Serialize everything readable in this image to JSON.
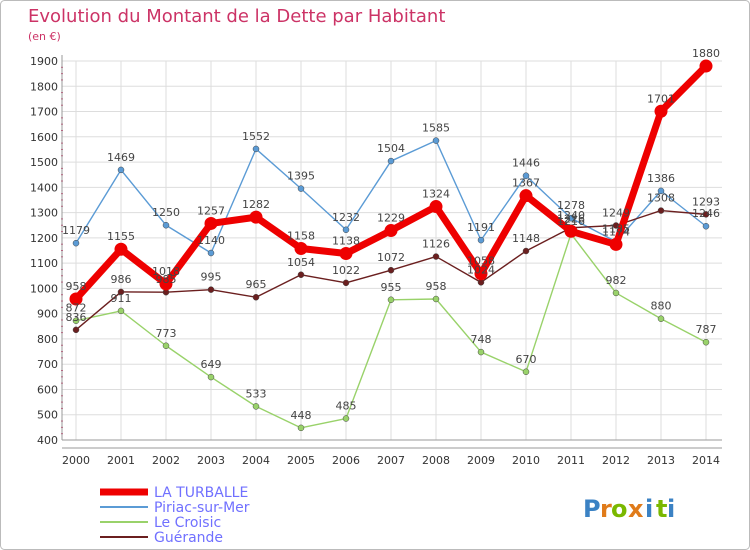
{
  "chart_data": {
    "type": "line",
    "title": "Evolution du Montant de la Dette par Habitant",
    "subtitle": "(en €)",
    "x": [
      "2000",
      "2001",
      "2002",
      "2003",
      "2004",
      "2005",
      "2006",
      "2007",
      "2008",
      "2009",
      "2010",
      "2011",
      "2012",
      "2013",
      "2014"
    ],
    "ylim": [
      400,
      1900
    ],
    "yticks": [
      400,
      500,
      600,
      700,
      800,
      900,
      1000,
      1100,
      1200,
      1300,
      1400,
      1500,
      1600,
      1700,
      1800,
      1900
    ],
    "grid": true,
    "legend_position": "bottom-left",
    "series": [
      {
        "name": "Piriac-sur-Mer",
        "color": "#5b9bd5",
        "values": [
          1179,
          1469,
          1250,
          1140,
          1552,
          1395,
          1232,
          1504,
          1585,
          1191,
          1446,
          1278,
          1185,
          1386,
          1246
        ]
      },
      {
        "name": "Le Croisic",
        "color": "#99d26a",
        "values": [
          872,
          911,
          773,
          649,
          533,
          448,
          485,
          955,
          958,
          748,
          670,
          1216,
          982,
          880,
          787
        ]
      },
      {
        "name": "Guérande",
        "color": "#6b1f1f",
        "values": [
          836,
          986,
          985,
          995,
          965,
          1054,
          1022,
          1072,
          1126,
          1024,
          1148,
          1240,
          1249,
          1308,
          1293
        ]
      },
      {
        "name": "LA TURBALLE",
        "color": "#ee0000",
        "values": [
          958,
          1155,
          1018,
          1257,
          1282,
          1158,
          1138,
          1229,
          1324,
          1058,
          1367,
          1226,
          1174,
          1701,
          1880
        ]
      }
    ],
    "legend_order": [
      "LA TURBALLE",
      "Piriac-sur-Mer",
      "Le Croisic",
      "Guérande"
    ]
  },
  "brand": {
    "letters": [
      "P",
      "r",
      "o",
      "x",
      "i",
      "t",
      "i"
    ],
    "colors": [
      "#3b82c4",
      "#e07b1a",
      "#7ab800",
      "#e07b1a",
      "#3b82c4",
      "#7ab800",
      "#3b82c4"
    ]
  },
  "colors": {
    "title": "#cc3366",
    "axis": "#666666",
    "grid": "#dddddd",
    "legend_text": "#7070ff",
    "frame": "#bbbbbb"
  }
}
